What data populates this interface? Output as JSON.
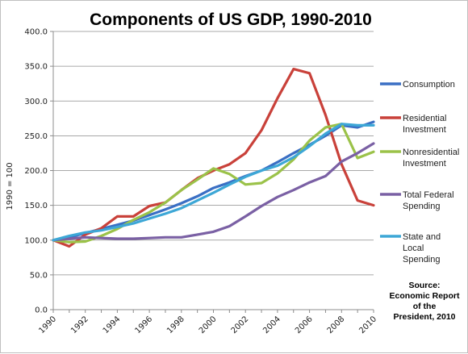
{
  "chart_data": {
    "type": "line",
    "title": "Components of US GDP, 1990-2010",
    "ylabel": "1990 = 100",
    "xlabel": "",
    "ylim": [
      0,
      400
    ],
    "yticks": [
      "0.0",
      "50.0",
      "100.0",
      "150.0",
      "200.0",
      "250.0",
      "300.0",
      "350.0",
      "400.0"
    ],
    "xtick_labels": [
      "1990",
      "1992",
      "1994",
      "1996",
      "1998",
      "2000",
      "2002",
      "2004",
      "2006",
      "2008",
      "2010"
    ],
    "x": [
      1990,
      1991,
      1992,
      1993,
      1994,
      1995,
      1996,
      1997,
      1998,
      1999,
      2000,
      2001,
      2002,
      2003,
      2004,
      2005,
      2006,
      2007,
      2008,
      2009,
      2010
    ],
    "grid": "horizontal",
    "legend_position": "right",
    "series": [
      {
        "name": "Consumption",
        "legend_lines": [
          "Consumption"
        ],
        "color": "#3a6fc4",
        "values": [
          100,
          104,
          110,
          116,
          122,
          128,
          136,
          144,
          153,
          163,
          175,
          183,
          192,
          200,
          212,
          225,
          237,
          250,
          265,
          262,
          270
        ]
      },
      {
        "name": "Residential Investment",
        "legend_lines": [
          "Residential",
          "Investment"
        ],
        "color": "#c9413a",
        "values": [
          100,
          91,
          108,
          117,
          134,
          134,
          149,
          154,
          172,
          189,
          200,
          209,
          225,
          258,
          304,
          346,
          340,
          280,
          209,
          157,
          150
        ]
      },
      {
        "name": "Nonresidential Investment",
        "legend_lines": [
          "Nonresidential",
          "Investment"
        ],
        "color": "#9bc249",
        "values": [
          100,
          97,
          98,
          106,
          116,
          129,
          140,
          154,
          172,
          187,
          203,
          195,
          180,
          182,
          196,
          216,
          243,
          262,
          267,
          218,
          227
        ]
      },
      {
        "name": "Total Federal Spending",
        "legend_lines": [
          "Total Federal",
          "Spending"
        ],
        "color": "#7a60a4",
        "values": [
          100,
          102,
          104,
          103,
          102,
          102,
          103,
          104,
          104,
          108,
          112,
          120,
          134,
          149,
          162,
          172,
          183,
          192,
          213,
          225,
          239
        ]
      },
      {
        "name": "State and Local Spending",
        "legend_lines": [
          "State and",
          "Local",
          "Spending"
        ],
        "color": "#3da7d6",
        "values": [
          100,
          106,
          111,
          114,
          119,
          124,
          131,
          138,
          146,
          157,
          168,
          180,
          191,
          200,
          207,
          219,
          235,
          253,
          267,
          265,
          265
        ]
      }
    ],
    "annotation": [
      "Source:",
      "Economic Report",
      "of the",
      "President, 2010"
    ]
  }
}
